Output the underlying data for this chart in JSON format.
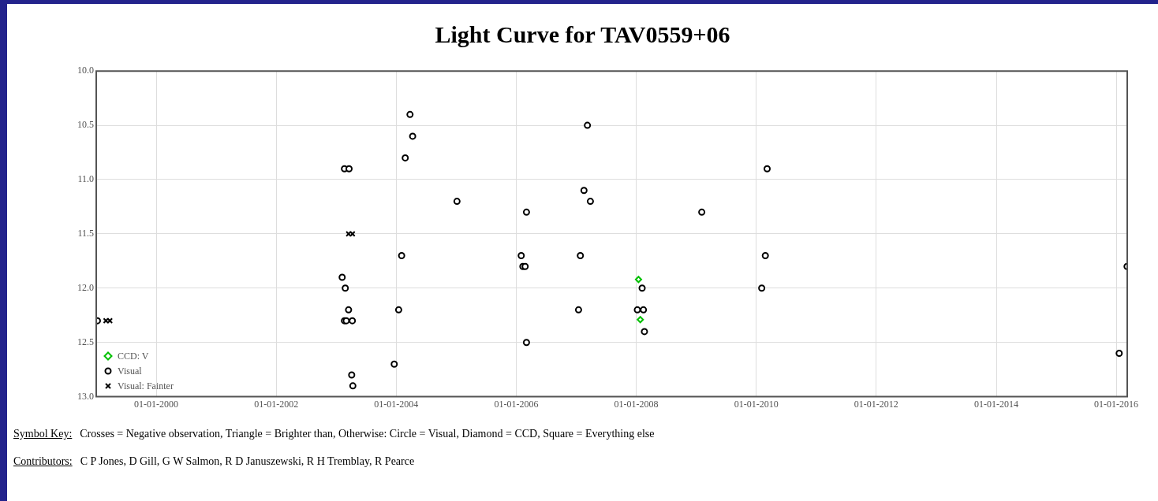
{
  "chart_data": {
    "type": "scatter",
    "title": "Light Curve for TAV0559+06",
    "xlim": [
      "1999-01-01",
      "2016-03-08"
    ],
    "xticks": [
      {
        "value": "2000-01-01",
        "label": "01-01-2000"
      },
      {
        "value": "2002-01-01",
        "label": "01-01-2002"
      },
      {
        "value": "2004-01-01",
        "label": "01-01-2004"
      },
      {
        "value": "2006-01-01",
        "label": "01-01-2006"
      },
      {
        "value": "2008-01-01",
        "label": "01-01-2008"
      },
      {
        "value": "2010-01-01",
        "label": "01-01-2010"
      },
      {
        "value": "2012-01-01",
        "label": "01-01-2012"
      },
      {
        "value": "2014-01-01",
        "label": "01-01-2014"
      },
      {
        "value": "2016-01-01",
        "label": "01-01-2016"
      }
    ],
    "ylim": [
      13.0,
      10.0
    ],
    "yticks": [
      {
        "value": 10,
        "label": "10.0"
      },
      {
        "value": 10.5,
        "label": "10.5"
      },
      {
        "value": 11,
        "label": "11.0"
      },
      {
        "value": 11.5,
        "label": "11.5"
      },
      {
        "value": 12,
        "label": "12.0"
      },
      {
        "value": 12.5,
        "label": "12.5"
      },
      {
        "value": 13,
        "label": "13.0"
      }
    ],
    "grid": true,
    "legend": "bottom left",
    "series": [
      {
        "name": "CCD: V",
        "color": "#00c000",
        "marker": "diamond",
        "x": [
          "2008-01-15",
          "2008-01-26"
        ],
        "values": [
          11.92,
          12.29
        ]
      },
      {
        "name": "Visual",
        "color": "#000000",
        "marker": "circle",
        "x": [
          "1999-01-08",
          "2003-02-20",
          "2003-03-20",
          "2003-02-06",
          "2003-02-25",
          "2003-03-17",
          "2003-02-20",
          "2003-03-03",
          "2003-04-09",
          "2003-04-05",
          "2003-04-12",
          "2004-03-25",
          "2004-04-10",
          "2004-02-25",
          "2004-02-03",
          "2004-01-16",
          "2003-12-20",
          "2005-01-05",
          "2007-03-10",
          "2007-02-17",
          "2007-03-28",
          "2006-03-04",
          "2009-02-03",
          "2010-03-08",
          "2006-01-31",
          "2006-02-10",
          "2006-02-24",
          "2007-01-26",
          "2010-02-25",
          "2010-02-03",
          "2007-01-15",
          "2008-01-08",
          "2008-02-14",
          "2008-02-06",
          "2008-02-20",
          "2006-03-04",
          "2016-03-07",
          "2016-01-19"
        ],
        "values": [
          12.3,
          10.9,
          10.9,
          11.9,
          12.0,
          12.2,
          12.3,
          12.3,
          12.3,
          12.8,
          12.9,
          10.4,
          10.6,
          10.8,
          11.7,
          12.2,
          12.7,
          11.2,
          10.5,
          11.1,
          11.2,
          11.3,
          11.3,
          10.9,
          11.7,
          11.8,
          11.8,
          11.7,
          11.7,
          12.0,
          12.2,
          12.2,
          12.2,
          12.0,
          12.4,
          12.5,
          11.8,
          12.6
        ]
      },
      {
        "name": "Visual: Fainter",
        "color": "#000000",
        "marker": "cross",
        "x": [
          "1999-03-01",
          "1999-03-25",
          "2003-03-17",
          "2003-04-10"
        ],
        "values": [
          12.3,
          12.3,
          11.5,
          11.5
        ]
      }
    ],
    "annotations": [
      "Symbol Key: Crosses = Negative observation, Triangle = Brighter than, Otherwise: Circle = Visual, Diamond = CCD, Square = Everything else",
      "Contributors: C P Jones, D Gill, G W Salmon, R D Januszewski, R H Tremblay, R Pearce"
    ]
  }
}
